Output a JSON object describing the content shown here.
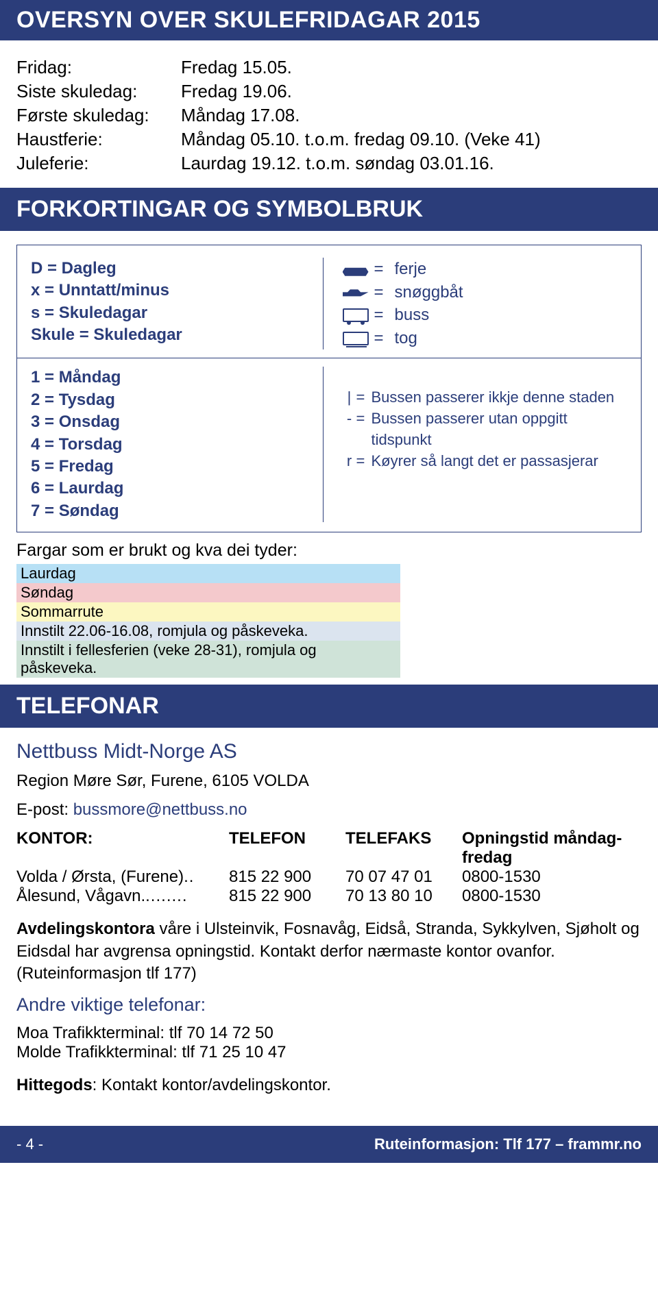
{
  "colors": {
    "band": "#2b3d7a",
    "text": "#000000",
    "link": "#2b3d7a",
    "stripe_laurdag": "#b7e0f5",
    "stripe_sondag": "#f4c9cc",
    "stripe_sommar": "#fcf7c1",
    "stripe_innstilt1": "#dbe4ef",
    "stripe_innstilt2": "#cfe3d8"
  },
  "title": "OVERSYN OVER SKULEFRIDAGAR 2015",
  "schedule": [
    {
      "label": "Fridag:",
      "value": "Fredag 15.05."
    },
    {
      "label": "Siste skuledag:",
      "value": "Fredag 19.06."
    },
    {
      "label": "Første skuledag:",
      "value": "Måndag 17.08."
    },
    {
      "label": "Haustferie:",
      "value": "Måndag 05.10. t.o.m. fredag 09.10. (Veke 41)"
    },
    {
      "label": "Juleferie:",
      "value": "Laurdag 19.12. t.o.m. søndag 03.01.16."
    }
  ],
  "fork_title": "FORKORTINGAR OG SYMBOLBRUK",
  "abbrev_left_top": [
    "D  =  Dagleg",
    "x  =  Unntatt/minus",
    "s  =  Skuledagar",
    "Skule = Skuledagar"
  ],
  "abbrev_left_bottom": [
    "1  =  Måndag",
    "2  =  Tysdag",
    "3  =  Onsdag",
    "4  =  Torsdag",
    "5  =  Fredag",
    "6  =  Laurdag",
    "7  =  Søndag"
  ],
  "symbols": [
    {
      "icon": "ferry",
      "eq": "=",
      "label": "ferje"
    },
    {
      "icon": "speed",
      "eq": "=",
      "label": "snøggbåt"
    },
    {
      "icon": "bus",
      "eq": "=",
      "label": "buss"
    },
    {
      "icon": "train",
      "eq": "=",
      "label": "tog"
    }
  ],
  "notes": [
    {
      "s": "|",
      "eq": "=",
      "t": "Bussen passerer ikkje denne staden"
    },
    {
      "s": "-",
      "eq": "=",
      "t": "Bussen passerer utan oppgitt tidspunkt"
    },
    {
      "s": "r",
      "eq": "=",
      "t": "Køyrer så langt det er passasjerar"
    }
  ],
  "fargar": {
    "title": "Fargar som er brukt og kva dei tyder:",
    "rows": [
      {
        "label": "Laurdag",
        "bg": "#b7e0f5"
      },
      {
        "label": "Søndag",
        "bg": "#f4c9cc"
      },
      {
        "label": "Sommarrute",
        "bg": "#fcf7c1"
      },
      {
        "label": "Innstilt 22.06-16.08, romjula og påskeveka.",
        "bg": "#dbe4ef"
      },
      {
        "label": "Innstilt i fellesferien (veke 28-31), romjula og påskeveka.",
        "bg": "#cfe3d8"
      }
    ]
  },
  "tel_title": "TELEFONAR",
  "company": "Nettbuss Midt-Norge AS",
  "region": "Region Møre Sør, Furene, 6105 VOLDA",
  "epost_label": "E-post: ",
  "epost": "bussmore@nettbuss.no",
  "kontor": {
    "head": [
      "KONTOR:",
      "TELEFON",
      "TELEFAKS",
      "Opningstid måndag-fredag"
    ],
    "rows": [
      {
        "name": "Volda / Ørsta, (Furene)",
        "tel": "815 22 900",
        "fax": "70 07 47 01",
        "open": "0800-1530"
      },
      {
        "name": "Ålesund, Vågavn.",
        "tel": "815 22 900",
        "fax": "70 13 80 10",
        "open": "0800-1530"
      }
    ]
  },
  "avdeling_bold": "Avdelingskontora",
  "avdeling_rest": " våre i Ulsteinvik, Fosnavåg, Eidså, Stranda, Sykkylven, Sjøholt og Eidsdal har avgrensa opningstid. Kontakt derfor nærmaste kontor ovanfor. (Ruteinformasjon tlf 177)",
  "andre_title": "Andre viktige telefonar:",
  "andre_lines": [
    "Moa Trafikkterminal: tlf 70 14 72 50",
    "Molde Trafikkterminal: tlf 71 25 10 47"
  ],
  "hittegods_bold": "Hittegods",
  "hittegods_rest": ": Kontakt kontor/avdelingskontor.",
  "footer": {
    "left": "- 4 -",
    "right": "Ruteinformasjon: Tlf 177 – frammr.no"
  }
}
